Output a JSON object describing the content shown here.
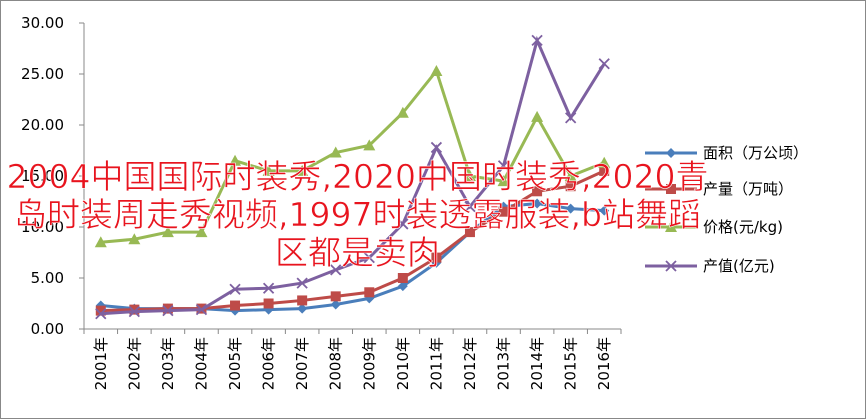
{
  "chart_data": {
    "type": "line",
    "title": "2004中国国际时装秀,2020中国时装秀,2020青岛时装周走秀视频,1997时装透露服装,b站舞蹈区都是卖肉",
    "categories": [
      "2001年",
      "2002年",
      "2003年",
      "2004年",
      "2005年",
      "2006年",
      "2007年",
      "2008年",
      "2009年",
      "2010年",
      "2011年",
      "2012年",
      "2013年",
      "2014年",
      "2015年",
      "2016年"
    ],
    "series": [
      {
        "name": "面积（万公顷）",
        "color": "#4a7ebb",
        "marker": "diamond",
        "values": [
          2.3,
          2.0,
          2.0,
          2.0,
          1.8,
          1.9,
          2.0,
          2.4,
          3.0,
          4.2,
          6.5,
          9.5,
          12.0,
          12.3,
          11.8,
          11.6
        ]
      },
      {
        "name": "产量（万吨）",
        "color": "#be4b48",
        "marker": "square",
        "values": [
          1.8,
          1.9,
          2.0,
          2.0,
          2.3,
          2.5,
          2.8,
          3.2,
          3.6,
          5.0,
          7.0,
          9.5,
          11.5,
          13.5,
          14.0,
          15.5
        ]
      },
      {
        "name": "价格(元/kg)",
        "color": "#98b954",
        "marker": "triangle",
        "values": [
          8.5,
          8.8,
          9.5,
          9.5,
          16.5,
          15.5,
          15.5,
          17.3,
          18.0,
          21.2,
          25.3,
          15.0,
          14.5,
          20.8,
          15.0,
          16.3
        ]
      },
      {
        "name": "产值(亿元)",
        "color": "#7d60a0",
        "marker": "x",
        "values": [
          1.5,
          1.7,
          1.8,
          1.9,
          3.9,
          4.0,
          4.5,
          5.8,
          7.0,
          10.3,
          17.8,
          12.0,
          16.0,
          28.3,
          20.7,
          26.0
        ]
      }
    ],
    "ylim": [
      0,
      30
    ],
    "yticks": [
      {
        "value": 0,
        "label": "0.00"
      },
      {
        "value": 5,
        "label": "5.00"
      },
      {
        "value": 10,
        "label": "10.00"
      },
      {
        "value": 15,
        "label": "15.00"
      },
      {
        "value": 20,
        "label": "20.00"
      },
      {
        "value": 25,
        "label": "25.00"
      },
      {
        "value": 30,
        "label": "30.00"
      }
    ],
    "grid": false,
    "legend": "right"
  }
}
